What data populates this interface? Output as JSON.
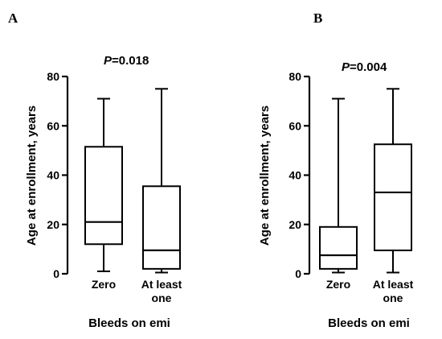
{
  "chart_data": [
    {
      "type": "box",
      "panel_label": "A",
      "annotation": "P=0.018",
      "annotation_italic": "P",
      "annotation_rest": "=0.018",
      "ylabel": "Age at enrollment, years",
      "xlabel": "Bleeds on emi",
      "ylim": [
        0,
        80
      ],
      "yticks": [
        0,
        20,
        40,
        60,
        80
      ],
      "categories": [
        [
          "Zero"
        ],
        [
          "At least",
          "one"
        ]
      ],
      "boxes": [
        {
          "min": 1,
          "q1": 12,
          "median": 21,
          "q3": 51.5,
          "max": 71
        },
        {
          "min": 0.5,
          "q1": 2,
          "median": 9.5,
          "q3": 35.5,
          "max": 75
        }
      ]
    },
    {
      "type": "box",
      "panel_label": "B",
      "annotation": "P=0.004",
      "annotation_italic": "P",
      "annotation_rest": "=0.004",
      "ylabel": "Age at enrollment, years",
      "xlabel": "Bleeds on emi",
      "ylim": [
        0,
        80
      ],
      "yticks": [
        0,
        20,
        40,
        60,
        80
      ],
      "categories": [
        [
          "Zero"
        ],
        [
          "At least",
          "one"
        ]
      ],
      "boxes": [
        {
          "min": 0.5,
          "q1": 2,
          "median": 7.5,
          "q3": 19,
          "max": 71
        },
        {
          "min": 0.5,
          "q1": 9.5,
          "median": 33,
          "q3": 52.5,
          "max": 75
        }
      ]
    }
  ]
}
